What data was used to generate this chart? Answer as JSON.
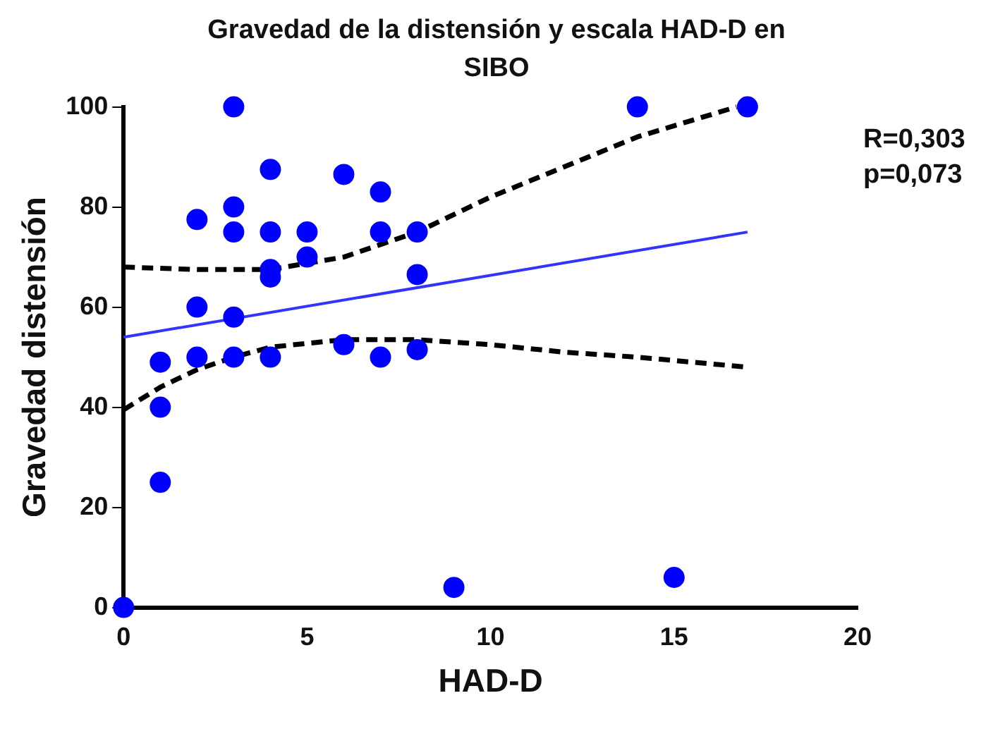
{
  "chart_data": {
    "type": "scatter",
    "title": "Gravedad de la distensión y escala HAD-D en SIBO",
    "xlabel": "HAD-D",
    "ylabel": "Gravedad distensión",
    "annotations": [
      "R=0,303",
      "p=0,073"
    ],
    "marker": "circle",
    "grid": false,
    "xlim": [
      0,
      20
    ],
    "xticks": [
      0,
      5,
      10,
      15,
      20
    ],
    "ylim": [
      0,
      100
    ],
    "yticks": [
      0,
      20,
      40,
      60,
      80,
      100
    ],
    "series": [
      {
        "color": "#0000ff",
        "x": [
          0,
          1,
          1,
          1,
          2,
          2,
          2,
          3,
          3,
          3,
          3,
          3,
          4,
          4,
          4,
          4,
          4,
          5,
          5,
          6,
          6,
          7,
          7,
          7,
          8,
          8,
          8,
          9,
          14,
          15,
          17
        ],
        "values": [
          0,
          49,
          40,
          25,
          77.5,
          60,
          50,
          100,
          80,
          75,
          58,
          50,
          87.5,
          75,
          67.5,
          66,
          50,
          75,
          70,
          86.5,
          52.5,
          83,
          75,
          50,
          75,
          66.5,
          51.5,
          4,
          100,
          6,
          100
        ]
      },
      {
        "type": "line",
        "marker": "none",
        "color": "#3333ff",
        "x": [
          0,
          17
        ],
        "values": [
          54,
          75
        ]
      },
      {
        "type": "line",
        "marker": "none",
        "color": "#000000",
        "line_style": "dashed",
        "x": [
          0,
          2,
          4,
          6,
          8,
          10,
          12,
          14,
          16.7
        ],
        "values": [
          68,
          67.5,
          67.5,
          70,
          75,
          82,
          88,
          94,
          100
        ]
      },
      {
        "type": "line",
        "marker": "none",
        "color": "#000000",
        "line_style": "dashed",
        "x": [
          0,
          1,
          2,
          3,
          4,
          6,
          8,
          10,
          12,
          14,
          17
        ],
        "values": [
          39.5,
          44,
          47.5,
          50,
          52,
          53.5,
          53.5,
          52.5,
          51,
          50,
          48
        ]
      }
    ]
  }
}
